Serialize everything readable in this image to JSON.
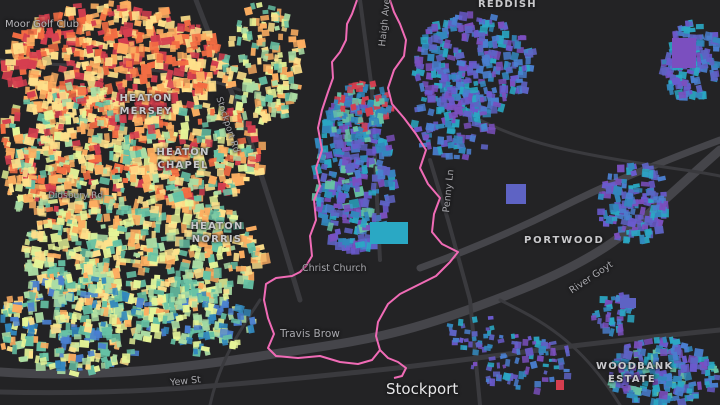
{
  "map": {
    "labels": {
      "moor_golf_club": "Moor Golf Club",
      "heaton_mersey": "HEATON MERSEY",
      "heaton_chapel": "HEATON CHAPEL",
      "heaton_norris": "HEATON NORRIS",
      "reddish": "REDDISH",
      "portwood": "PORTWOOD",
      "woodbank_estate": "WOODBANK ESTATE",
      "stockport": "Stockport",
      "haigh_ave": "Haigh Ave",
      "penny_ln": "Penny Ln",
      "christ_church": "Christ Church",
      "travis_brow": "Travis Brow",
      "yew_st": "Yew St",
      "river_goyt": "River Goyt",
      "stockport_road": "Stockport Rd",
      "didsbury_rd": "Didsbury Rd"
    },
    "colors": {
      "background": "#232325",
      "road": "#3a3a3e",
      "major_road": "#45454a",
      "boundary": "#f06bb6",
      "ramp_west": [
        "#d53e4f",
        "#f46d43",
        "#fdae61",
        "#fee08b",
        "#e6f598",
        "#abdda4",
        "#66c2a5"
      ],
      "ramp_east": [
        "#3288bd",
        "#4a7fd0",
        "#5e63c4",
        "#2aa8c4",
        "#7b4fbf",
        "#6a5acd"
      ]
    },
    "boundary_name": "selected-district-outline"
  }
}
